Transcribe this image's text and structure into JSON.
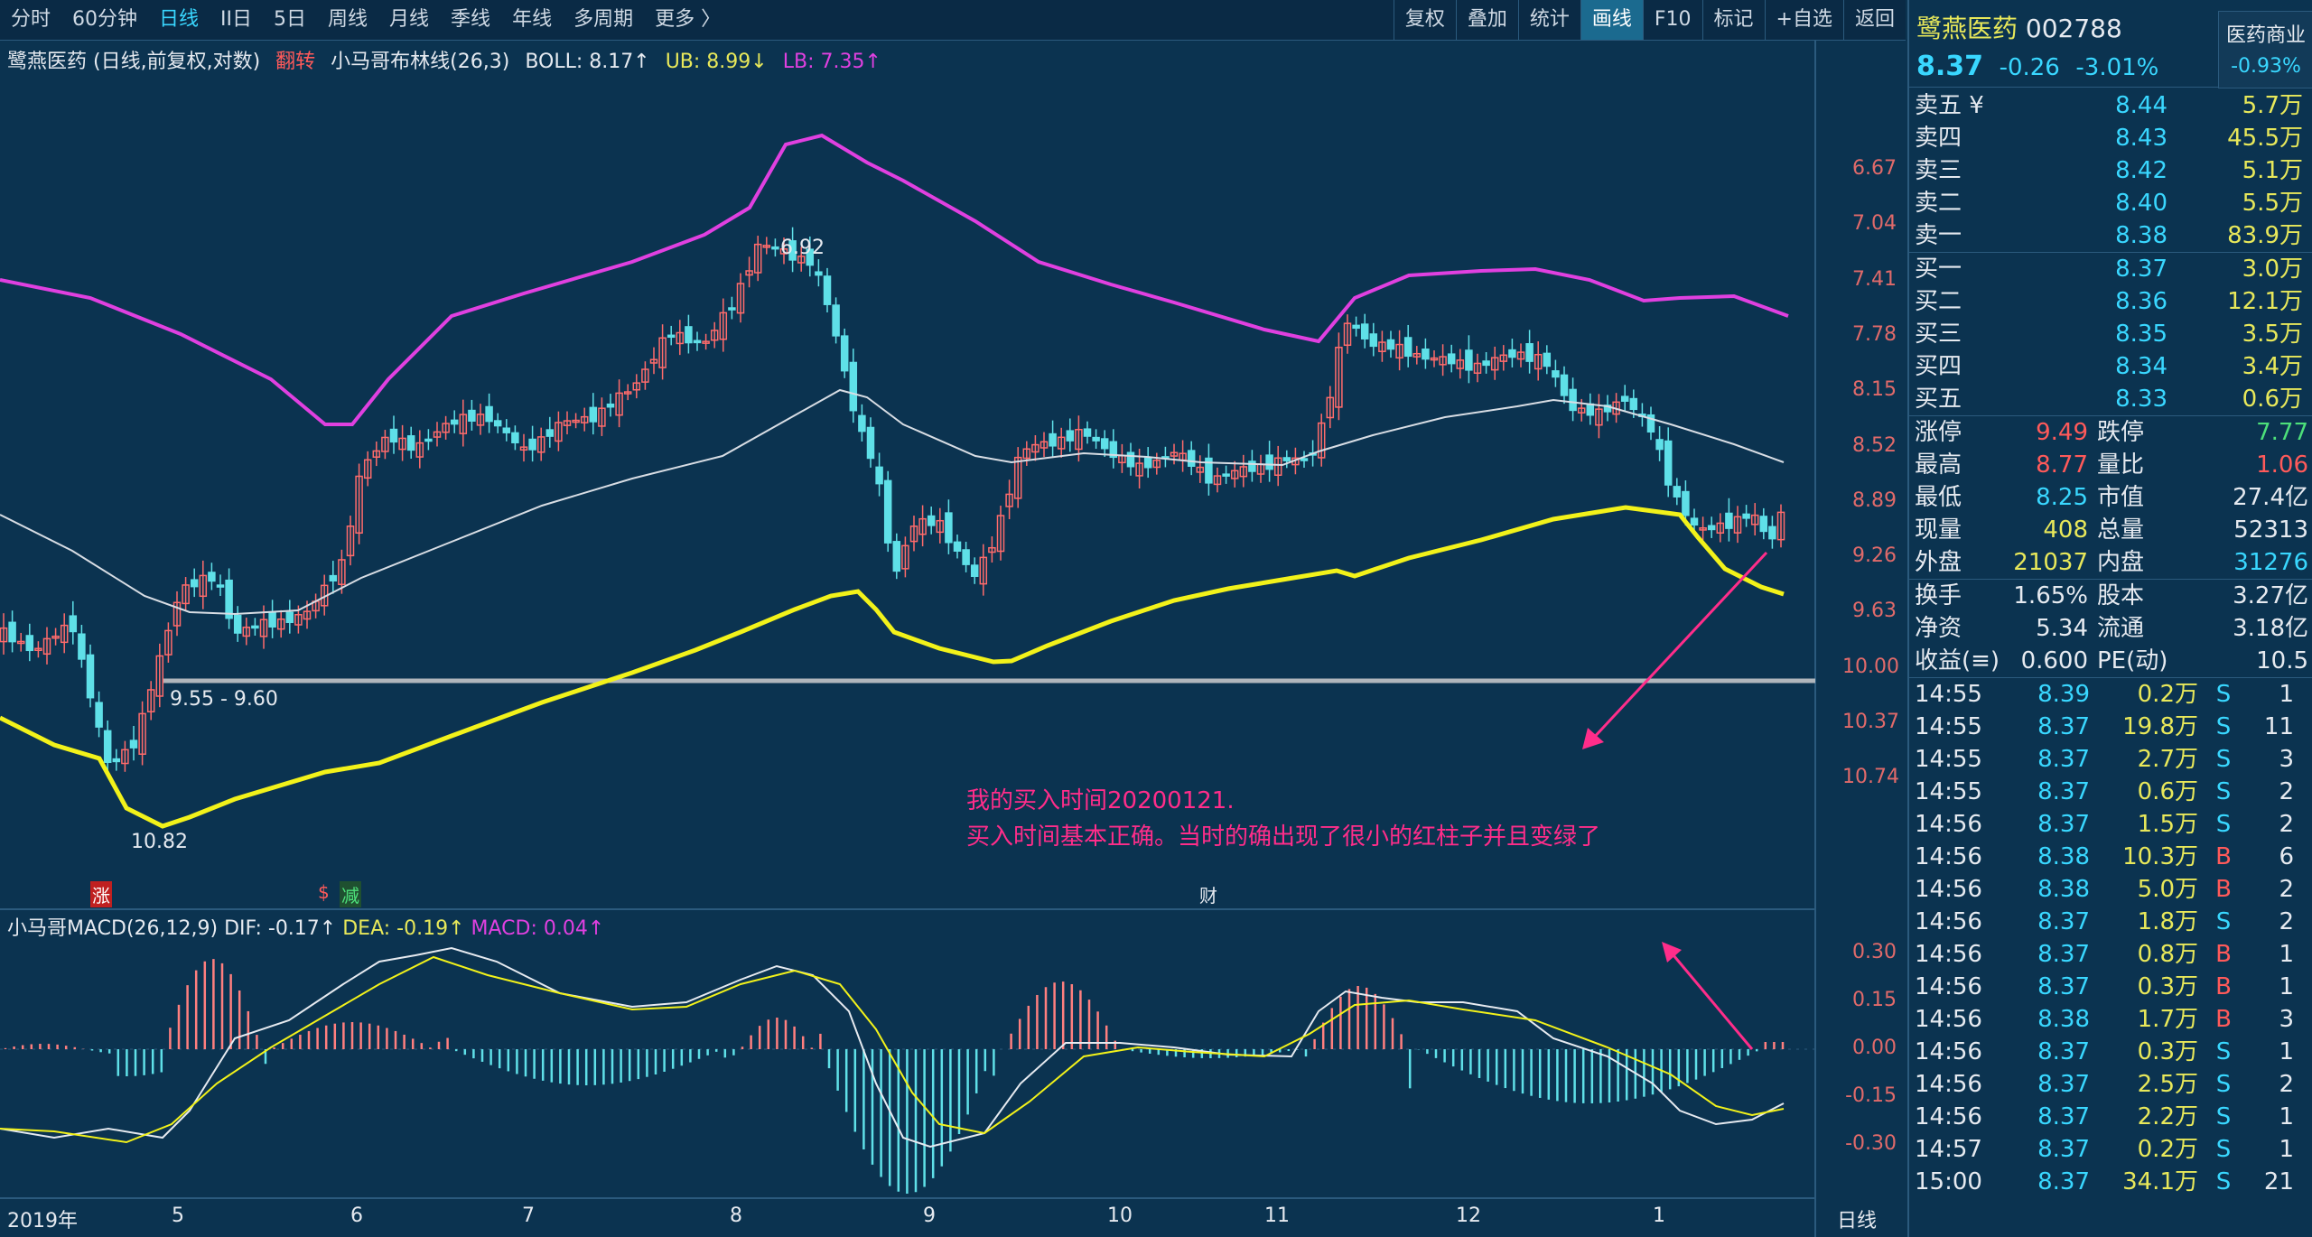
{
  "toolbar": {
    "tabs": [
      "分时",
      "60分钟",
      "日线",
      "II日",
      "5日",
      "周线",
      "月线",
      "季线",
      "年线",
      "多周期",
      "更多 〉"
    ],
    "active_tab": "日线",
    "right_buttons": [
      "复权",
      "叠加",
      "统计",
      "画线",
      "F10",
      "标记",
      "+自选",
      "返回"
    ],
    "active_right": "画线"
  },
  "chart_info": {
    "name": "鹭燕医药 (日线,前复权,对数)",
    "flag": "翻转",
    "indicator": "小马哥布林线(26,3)",
    "boll": "BOLL: 8.17↑",
    "ub": "UB: 8.99↓",
    "lb": "LB: 7.35↑"
  },
  "price_axis": {
    "ticks": [
      "6.67",
      "7.04",
      "7.41",
      "7.78",
      "8.15",
      "8.52",
      "8.89",
      "9.26",
      "9.63",
      "10.00",
      "10.37",
      "10.74"
    ]
  },
  "annotations": {
    "range_label": "9.55 - 9.60",
    "low_label": "10.82",
    "high_label": "6.92",
    "note_line1": "我的买入时间20200121.",
    "note_line2": "买入时间基本正确。当时的确出现了很小的红柱子并且变绿了",
    "event_zhang": "涨",
    "event_s": "$",
    "event_jian": "减",
    "event_cai": "财"
  },
  "macd_info": {
    "name": "小马哥MACD(26,12,9)",
    "dif": "DIF: -0.17↑",
    "dea": "DEA: -0.19↑",
    "macd": "MACD: 0.04↑"
  },
  "macd_axis": {
    "ticks": [
      "0.30",
      "0.15",
      "0.00",
      "-0.15",
      "-0.30"
    ]
  },
  "date_axis": {
    "labels": [
      "2019年",
      "5",
      "6",
      "7",
      "8",
      "9",
      "10",
      "11",
      "12",
      "1"
    ],
    "period": "日线"
  },
  "stock": {
    "name": "鹭燕医药",
    "code": "002788",
    "price": "8.37",
    "change": "-0.26",
    "pct": "-3.01%",
    "sector": "医药商业",
    "sector_pct": "-0.93%"
  },
  "order_book": {
    "sells": [
      {
        "label": "卖五 ¥",
        "price": "8.44",
        "vol": "5.7万"
      },
      {
        "label": "卖四",
        "price": "8.43",
        "vol": "45.5万"
      },
      {
        "label": "卖三",
        "price": "8.42",
        "vol": "5.1万"
      },
      {
        "label": "卖二",
        "price": "8.40",
        "vol": "5.5万"
      },
      {
        "label": "卖一",
        "price": "8.38",
        "vol": "83.9万"
      }
    ],
    "buys": [
      {
        "label": "买一",
        "price": "8.37",
        "vol": "3.0万"
      },
      {
        "label": "买二",
        "price": "8.36",
        "vol": "12.1万"
      },
      {
        "label": "买三",
        "price": "8.35",
        "vol": "3.5万"
      },
      {
        "label": "买四",
        "price": "8.34",
        "vol": "3.4万"
      },
      {
        "label": "买五",
        "price": "8.33",
        "vol": "0.6万"
      }
    ]
  },
  "stats": [
    {
      "l1": "涨停",
      "v1": "9.49",
      "l2": "跌停",
      "v2": "7.77"
    },
    {
      "l1": "最高",
      "v1": "8.77",
      "l2": "量比",
      "v2": "1.06"
    },
    {
      "l1": "最低",
      "v1": "8.25",
      "l2": "市值",
      "v2": "27.4亿"
    },
    {
      "l1": "现量",
      "v1": "408",
      "l2": "总量",
      "v2": "52313"
    },
    {
      "l1": "外盘",
      "v1": "21037",
      "l2": "内盘",
      "v2": "31276"
    },
    {
      "l1": "换手",
      "v1": "1.65%",
      "l2": "股本",
      "v2": "3.27亿"
    },
    {
      "l1": "净资",
      "v1": "5.34",
      "l2": "流通",
      "v2": "3.18亿"
    },
    {
      "l1": "收益(≡)",
      "v1": "0.600",
      "l2": "PE(动)",
      "v2": "10.5"
    }
  ],
  "ticks": [
    {
      "t": "14:55",
      "p": "8.39",
      "v": "0.2万",
      "d": "S",
      "n": "1"
    },
    {
      "t": "14:55",
      "p": "8.37",
      "v": "19.8万",
      "d": "S",
      "n": "11"
    },
    {
      "t": "14:55",
      "p": "8.37",
      "v": "2.7万",
      "d": "S",
      "n": "3"
    },
    {
      "t": "14:55",
      "p": "8.37",
      "v": "0.6万",
      "d": "S",
      "n": "2"
    },
    {
      "t": "14:56",
      "p": "8.37",
      "v": "1.5万",
      "d": "S",
      "n": "2"
    },
    {
      "t": "14:56",
      "p": "8.38",
      "v": "10.3万",
      "d": "B",
      "n": "6"
    },
    {
      "t": "14:56",
      "p": "8.38",
      "v": "5.0万",
      "d": "B",
      "n": "2"
    },
    {
      "t": "14:56",
      "p": "8.37",
      "v": "1.8万",
      "d": "S",
      "n": "2"
    },
    {
      "t": "14:56",
      "p": "8.37",
      "v": "0.8万",
      "d": "B",
      "n": "1"
    },
    {
      "t": "14:56",
      "p": "8.37",
      "v": "0.3万",
      "d": "B",
      "n": "1"
    },
    {
      "t": "14:56",
      "p": "8.38",
      "v": "1.7万",
      "d": "B",
      "n": "3"
    },
    {
      "t": "14:56",
      "p": "8.37",
      "v": "0.3万",
      "d": "S",
      "n": "1"
    },
    {
      "t": "14:56",
      "p": "8.37",
      "v": "2.5万",
      "d": "S",
      "n": "2"
    },
    {
      "t": "14:56",
      "p": "8.37",
      "v": "2.2万",
      "d": "S",
      "n": "1"
    },
    {
      "t": "14:57",
      "p": "8.37",
      "v": "0.2万",
      "d": "S",
      "n": "1"
    },
    {
      "t": "15:00",
      "p": "8.37",
      "v": "34.1万",
      "d": "S",
      "n": "21"
    }
  ],
  "colors": {
    "background": "#0b3350",
    "up_candle": "#ff6b6b",
    "down_candle": "#5fe0e8",
    "ub_line": "#e040e0",
    "lb_line": "#f2f21a",
    "mid_line": "#d8dde4",
    "annotation": "#ff2d8a"
  }
}
